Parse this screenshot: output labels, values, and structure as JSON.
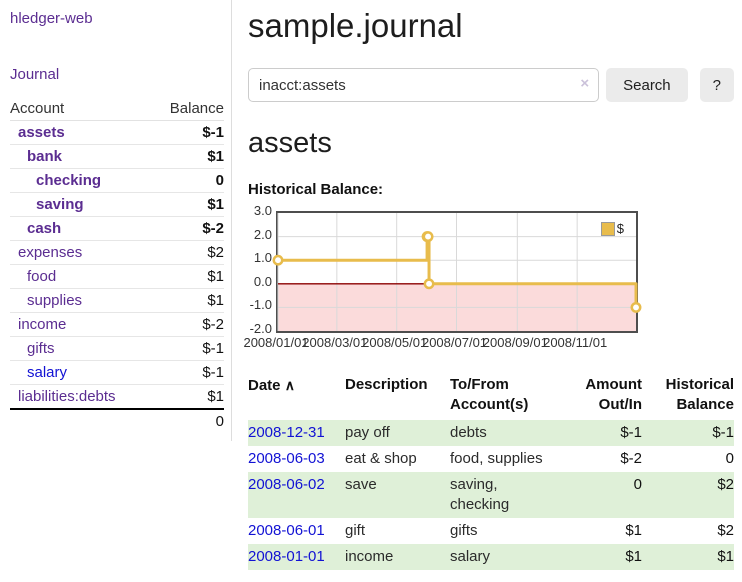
{
  "colors": {
    "purple_link": "#5b2d91",
    "blue_link": "#1212d4",
    "strong_negative": "#7d0b0b",
    "soft_negative": "#b96a6a",
    "row_green": "#dff0d8",
    "chart_line": "#e8bc4c",
    "chart_negative_fill": "#fbdbdb",
    "chart_zero_line": "#8b0000"
  },
  "sidebar": {
    "brand": "hledger-web",
    "nav_journal": "Journal",
    "accounts": {
      "headers": {
        "account": "Account",
        "balance": "Balance"
      },
      "rows": [
        {
          "account": "assets",
          "indent": 0,
          "bold": true,
          "balance": "$-1",
          "neg": "strong"
        },
        {
          "account": "bank",
          "indent": 1,
          "bold": true,
          "balance": "$1"
        },
        {
          "account": "checking",
          "indent": 2,
          "bold": true,
          "balance": "0"
        },
        {
          "account": "saving",
          "indent": 2,
          "bold": true,
          "balance": "$1"
        },
        {
          "account": "cash",
          "indent": 1,
          "bold": true,
          "balance": "$-2",
          "neg": "strong"
        },
        {
          "account": "expenses",
          "indent": 0,
          "bold": false,
          "balance": "$2"
        },
        {
          "account": "food",
          "indent": 1,
          "bold": false,
          "balance": "$1"
        },
        {
          "account": "supplies",
          "indent": 1,
          "bold": false,
          "balance": "$1"
        },
        {
          "account": "income",
          "indent": 0,
          "bold": false,
          "balance": "$-2",
          "neg": "soft"
        },
        {
          "account": "gifts",
          "indent": 1,
          "bold": false,
          "balance": "$-1",
          "neg": "soft"
        },
        {
          "account": "salary",
          "indent": 1,
          "bold": false,
          "balance": "$-1",
          "neg": "soft",
          "link": "blue"
        },
        {
          "account": "liabilities:debts",
          "indent": 0,
          "bold": false,
          "balance": "$1"
        }
      ],
      "total": "0"
    }
  },
  "main": {
    "title": "sample.journal",
    "search": {
      "value": "inacct:assets",
      "clear_icon": "×",
      "button_label": "Search",
      "help_label": "?"
    },
    "account_heading": "assets",
    "chart_title": "Historical Balance:"
  },
  "chart_data": {
    "type": "line",
    "step": true,
    "title": "Historical Balance:",
    "legend": [
      {
        "label": "$",
        "color": "#e8bc4c"
      }
    ],
    "legend_position": "top-right",
    "grid": true,
    "ylim": [
      -2.0,
      3.0
    ],
    "y_ticks": [
      "3.0",
      "2.0",
      "1.0",
      "0.0",
      "-1.0",
      "-2.0"
    ],
    "y_tick_values": [
      3,
      2,
      1,
      0,
      -1,
      -2
    ],
    "x_range": [
      "2008-01-01",
      "2008-12-31"
    ],
    "x_ticks": [
      "2008/01/01",
      "2008/03/01",
      "2008/05/01",
      "2008/07/01",
      "2008/09/01",
      "2008/11/01"
    ],
    "x_tick_dates": [
      "2008-01-01",
      "2008-03-01",
      "2008-05-01",
      "2008-07-01",
      "2008-09-01",
      "2008-11-01"
    ],
    "series": [
      {
        "name": "$",
        "points": [
          [
            "2008-01-01",
            1
          ],
          [
            "2008-06-01",
            2
          ],
          [
            "2008-06-02",
            2
          ],
          [
            "2008-06-03",
            0
          ],
          [
            "2008-12-31",
            -1
          ]
        ]
      }
    ],
    "negative_region": {
      "from": 0,
      "to": -2
    }
  },
  "register": {
    "headers": {
      "date": "Date",
      "sort_icon": "∧",
      "description": "Description",
      "tofrom": "To/From Account(s)",
      "amount": "Amount Out/In",
      "balance": "Historical Balance"
    },
    "rows": [
      {
        "date": "2008-12-31",
        "description": "pay off",
        "tofrom": "debts",
        "amount": "$-1",
        "amount_neg": true,
        "balance": "$-1",
        "balance_neg": true,
        "green": true
      },
      {
        "date": "2008-06-03",
        "description": "eat & shop",
        "tofrom": "food, supplies",
        "amount": "$-2",
        "amount_neg": true,
        "balance": "0",
        "balance_neg": false,
        "green": false
      },
      {
        "date": "2008-06-02",
        "description": "save",
        "tofrom": "saving, checking",
        "amount": "0",
        "amount_neg": false,
        "balance": "$2",
        "balance_neg": false,
        "green": true
      },
      {
        "date": "2008-06-01",
        "description": "gift",
        "tofrom": "gifts",
        "amount": "$1",
        "amount_neg": false,
        "balance": "$2",
        "balance_neg": false,
        "green": false
      },
      {
        "date": "2008-01-01",
        "description": "income",
        "tofrom": "salary",
        "amount": "$1",
        "amount_neg": false,
        "balance": "$1",
        "balance_neg": false,
        "green": true
      }
    ]
  }
}
